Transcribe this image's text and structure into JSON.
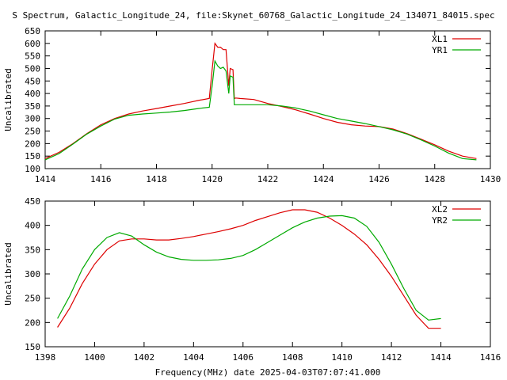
{
  "title": "S Spectrum, Galactic_Longitude_24, file:Skynet_60768_Galactic_Longitude_24_134071_84015.spec",
  "xlabel": "Frequency(MHz) date 2025-04-03T07:07:41.000",
  "colors": {
    "red": "#dd0000",
    "green": "#00aa00"
  },
  "chart_data": [
    {
      "type": "line",
      "ylabel": "Uncalibrated",
      "xlim": [
        1414,
        1430
      ],
      "ylim": [
        100,
        650
      ],
      "xticks": [
        1414,
        1416,
        1418,
        1420,
        1422,
        1424,
        1426,
        1428,
        1430
      ],
      "yticks": [
        100,
        150,
        200,
        250,
        300,
        350,
        400,
        450,
        500,
        550,
        600,
        650
      ],
      "legend_position": "top-right",
      "series": [
        {
          "name": "XL1",
          "color": "#dd0000",
          "x": [
            1414.0,
            1414.5,
            1415.0,
            1415.5,
            1416.0,
            1416.5,
            1417.0,
            1417.5,
            1418.0,
            1418.5,
            1419.0,
            1419.5,
            1419.9,
            1420.0,
            1420.1,
            1420.2,
            1420.3,
            1420.4,
            1420.5,
            1420.6,
            1420.65,
            1420.75,
            1420.8,
            1420.85,
            1421.0,
            1421.5,
            1422.0,
            1422.5,
            1423.0,
            1423.5,
            1424.0,
            1424.5,
            1425.0,
            1425.5,
            1426.0,
            1426.5,
            1427.0,
            1427.5,
            1428.0,
            1428.5,
            1429.0,
            1429.5
          ],
          "y": [
            140,
            165,
            200,
            240,
            275,
            300,
            318,
            330,
            340,
            350,
            360,
            372,
            380,
            495,
            600,
            585,
            585,
            575,
            575,
            430,
            500,
            495,
            380,
            382,
            380,
            376,
            360,
            348,
            335,
            318,
            300,
            285,
            275,
            270,
            268,
            258,
            240,
            218,
            195,
            170,
            150,
            140
          ]
        },
        {
          "name": "YR1",
          "color": "#00aa00",
          "x": [
            1414.0,
            1414.5,
            1415.0,
            1415.5,
            1416.0,
            1416.5,
            1417.0,
            1417.5,
            1418.0,
            1418.5,
            1419.0,
            1419.5,
            1419.9,
            1420.0,
            1420.1,
            1420.2,
            1420.3,
            1420.4,
            1420.5,
            1420.6,
            1420.65,
            1420.75,
            1420.8,
            1420.85,
            1421.0,
            1421.5,
            1422.0,
            1422.5,
            1423.0,
            1423.5,
            1424.0,
            1424.5,
            1425.0,
            1425.5,
            1426.0,
            1426.5,
            1427.0,
            1427.5,
            1428.0,
            1428.5,
            1429.0,
            1429.5
          ],
          "y": [
            135,
            160,
            198,
            238,
            270,
            298,
            313,
            318,
            322,
            326,
            332,
            340,
            345,
            430,
            530,
            510,
            500,
            505,
            490,
            400,
            470,
            465,
            355,
            355,
            355,
            355,
            355,
            350,
            342,
            330,
            315,
            300,
            290,
            280,
            268,
            255,
            238,
            215,
            190,
            162,
            140,
            135
          ]
        }
      ]
    },
    {
      "type": "line",
      "ylabel": "Uncalibrated",
      "xlim": [
        1398,
        1416
      ],
      "ylim": [
        150,
        450
      ],
      "xticks": [
        1398,
        1400,
        1402,
        1404,
        1406,
        1408,
        1410,
        1412,
        1414,
        1416
      ],
      "yticks": [
        150,
        200,
        250,
        300,
        350,
        400,
        450
      ],
      "legend_position": "top-right",
      "series": [
        {
          "name": "XL2",
          "color": "#dd0000",
          "x": [
            1398.5,
            1399.0,
            1399.5,
            1400.0,
            1400.5,
            1401.0,
            1401.5,
            1402.0,
            1402.5,
            1403.0,
            1403.5,
            1404.0,
            1404.5,
            1405.0,
            1405.5,
            1406.0,
            1406.5,
            1407.0,
            1407.5,
            1408.0,
            1408.5,
            1409.0,
            1409.5,
            1410.0,
            1410.5,
            1411.0,
            1411.5,
            1412.0,
            1412.5,
            1413.0,
            1413.5,
            1414.0
          ],
          "y": [
            190,
            230,
            280,
            320,
            350,
            368,
            372,
            372,
            370,
            370,
            373,
            377,
            382,
            387,
            393,
            400,
            410,
            418,
            426,
            432,
            432,
            427,
            415,
            400,
            382,
            360,
            330,
            295,
            255,
            215,
            188,
            188
          ]
        },
        {
          "name": "YR2",
          "color": "#00aa00",
          "x": [
            1398.5,
            1399.0,
            1399.5,
            1400.0,
            1400.5,
            1401.0,
            1401.5,
            1402.0,
            1402.5,
            1403.0,
            1403.5,
            1404.0,
            1404.5,
            1405.0,
            1405.5,
            1406.0,
            1406.5,
            1407.0,
            1407.5,
            1408.0,
            1408.5,
            1409.0,
            1409.5,
            1410.0,
            1410.5,
            1411.0,
            1411.5,
            1412.0,
            1412.5,
            1413.0,
            1413.5,
            1414.0
          ],
          "y": [
            208,
            255,
            310,
            350,
            375,
            385,
            378,
            360,
            345,
            335,
            330,
            328,
            328,
            329,
            332,
            338,
            350,
            365,
            380,
            395,
            407,
            415,
            419,
            420,
            415,
            398,
            365,
            320,
            270,
            225,
            205,
            208
          ]
        }
      ]
    }
  ]
}
